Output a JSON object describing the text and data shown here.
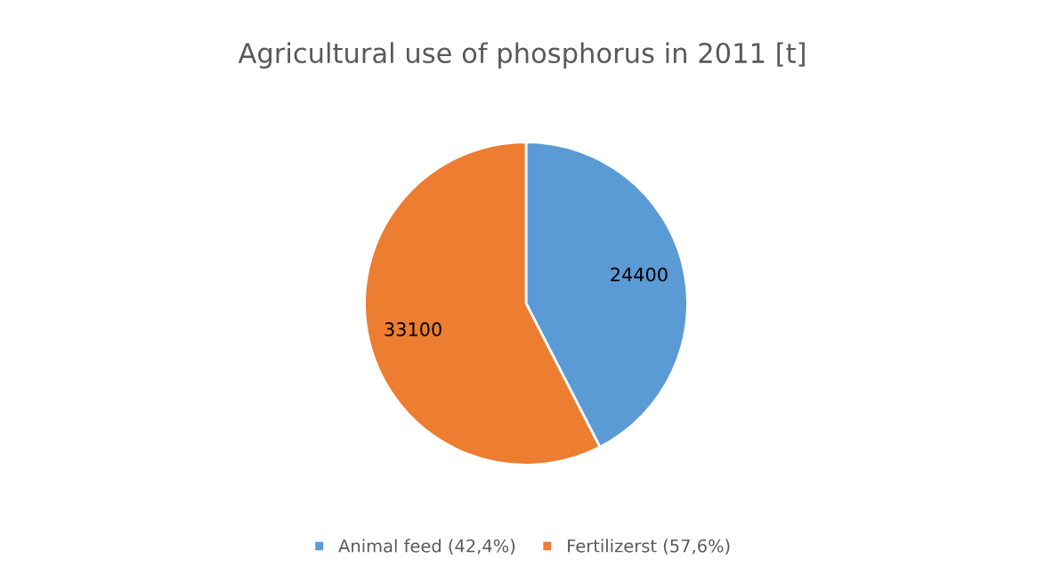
{
  "chart_data": {
    "type": "pie",
    "title": "Agricultural use of phosphorus in 2011 [t]",
    "categories": [
      "Animal feed (42,4%)",
      "Fertilizerst (57,6%)"
    ],
    "values": [
      24400,
      33100
    ],
    "colors": [
      "#5b9bd5",
      "#ed7d31"
    ],
    "data_labels": true,
    "legend": "bottom"
  }
}
